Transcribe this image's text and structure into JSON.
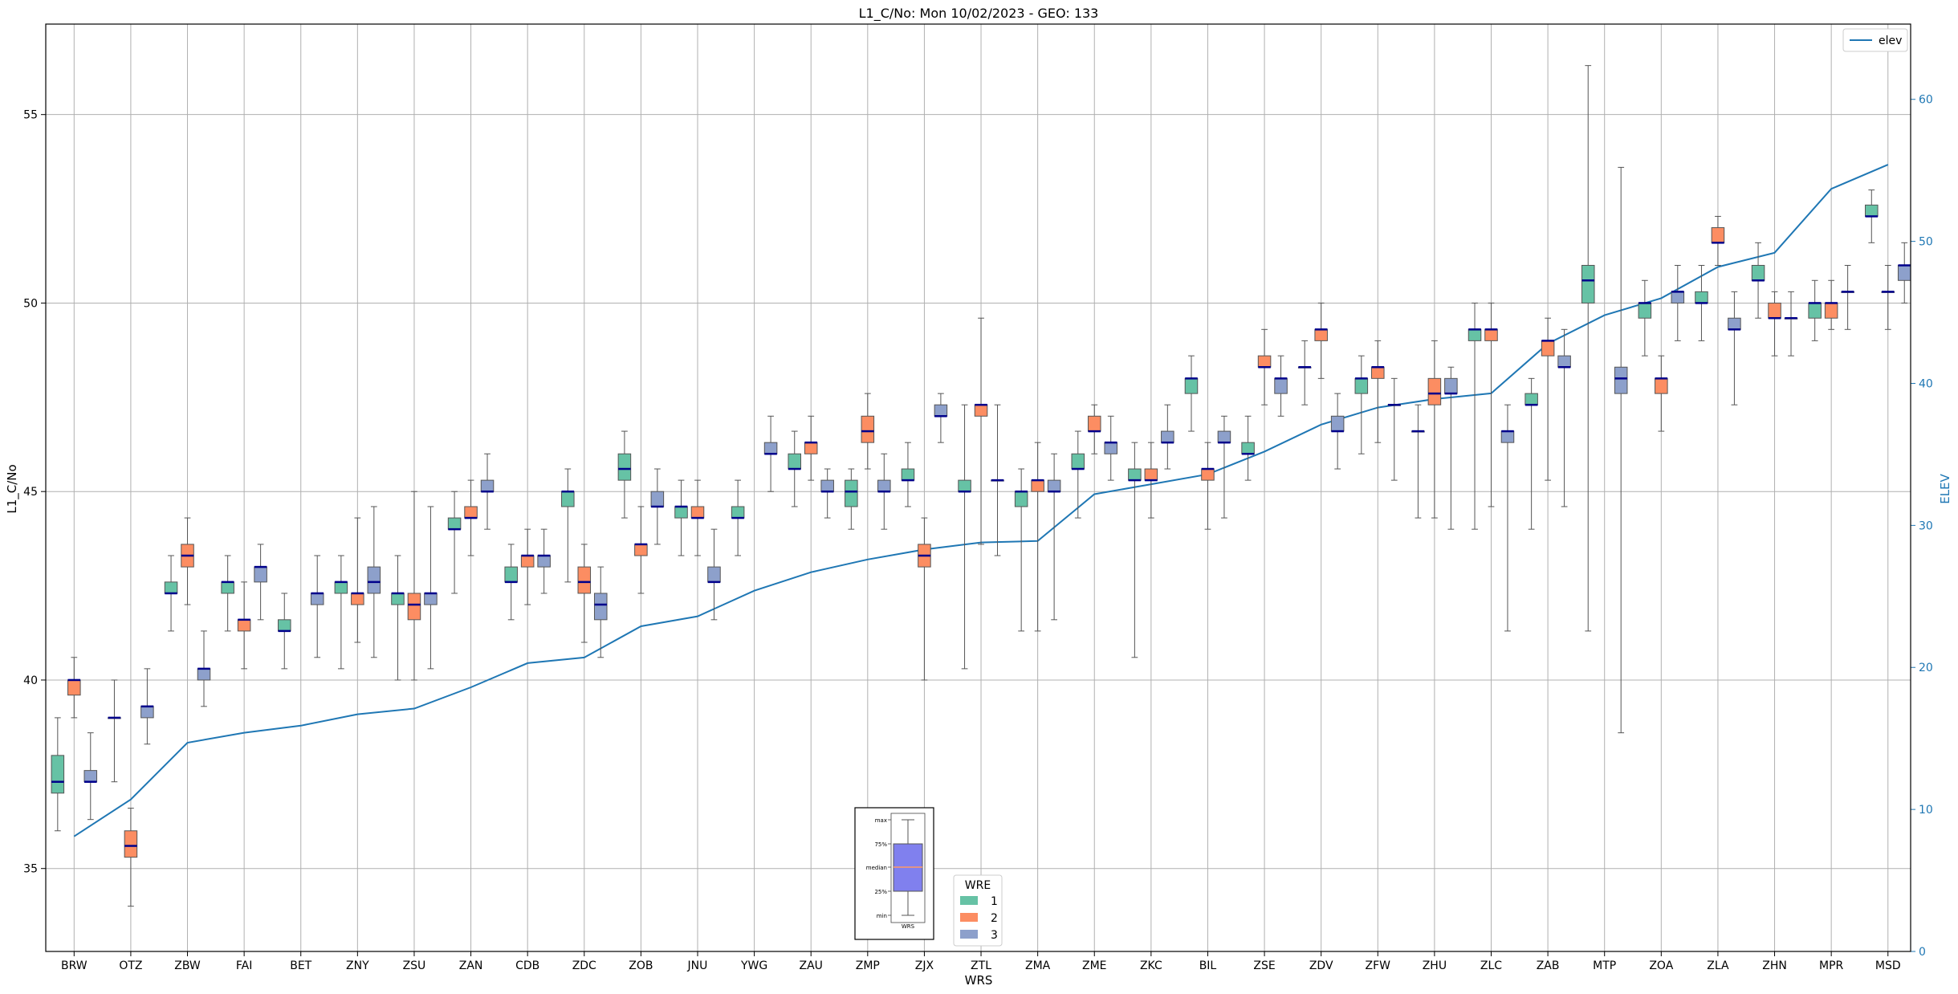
{
  "chart_data": {
    "type": "box",
    "title": "L1_C/No: Mon 10/02/2023 - GEO: 133",
    "xlabel": "WRS",
    "ylabel": "L1_C/No",
    "y2label": "ELEV",
    "ylim": [
      32.8,
      57.4
    ],
    "y2lim": [
      0,
      65.3
    ],
    "yticks": [
      35,
      40,
      45,
      50,
      55
    ],
    "y2ticks": [
      0,
      10,
      20,
      30,
      40,
      50,
      60
    ],
    "grid": true,
    "categories": [
      "BRW",
      "OTZ",
      "ZBW",
      "FAI",
      "BET",
      "ZNY",
      "ZSU",
      "ZAN",
      "CDB",
      "ZDC",
      "ZOB",
      "JNU",
      "YWG",
      "ZAU",
      "ZMP",
      "ZJX",
      "ZTL",
      "ZMA",
      "ZME",
      "ZKC",
      "BIL",
      "ZSE",
      "ZDV",
      "ZFW",
      "ZHU",
      "ZLC",
      "ZAB",
      "MTP",
      "ZOA",
      "ZLA",
      "ZHN",
      "MPR",
      "MSD"
    ],
    "wre_colors": {
      "1": "#66c2a5",
      "2": "#fc8d62",
      "3": "#8da0cb"
    },
    "median_color": "#00008b",
    "boxes": [
      {
        "wrs": "BRW",
        "wre": 1,
        "min": 36.0,
        "q1": 37.0,
        "median": 37.3,
        "q3": 38.0,
        "max": 39.0
      },
      {
        "wrs": "BRW",
        "wre": 2,
        "min": 39.0,
        "q1": 39.6,
        "median": 40.0,
        "q3": 40.0,
        "max": 40.6
      },
      {
        "wrs": "BRW",
        "wre": 3,
        "min": 36.3,
        "q1": 37.3,
        "median": 37.3,
        "q3": 37.6,
        "max": 38.6
      },
      {
        "wrs": "OTZ",
        "wre": 1,
        "min": 37.3,
        "q1": 39.0,
        "median": 39.0,
        "q3": 39.0,
        "max": 40.0
      },
      {
        "wrs": "OTZ",
        "wre": 2,
        "min": 34.0,
        "q1": 35.3,
        "median": 35.6,
        "q3": 36.0,
        "max": 36.6
      },
      {
        "wrs": "OTZ",
        "wre": 3,
        "min": 38.3,
        "q1": 39.0,
        "median": 39.3,
        "q3": 39.3,
        "max": 40.3
      },
      {
        "wrs": "ZBW",
        "wre": 1,
        "min": 41.3,
        "q1": 42.3,
        "median": 42.3,
        "q3": 42.6,
        "max": 43.3
      },
      {
        "wrs": "ZBW",
        "wre": 2,
        "min": 42.0,
        "q1": 43.0,
        "median": 43.3,
        "q3": 43.6,
        "max": 44.3
      },
      {
        "wrs": "ZBW",
        "wre": 3,
        "min": 39.3,
        "q1": 40.0,
        "median": 40.3,
        "q3": 40.3,
        "max": 41.3
      },
      {
        "wrs": "FAI",
        "wre": 1,
        "min": 41.3,
        "q1": 42.3,
        "median": 42.6,
        "q3": 42.6,
        "max": 43.3
      },
      {
        "wrs": "FAI",
        "wre": 2,
        "min": 40.3,
        "q1": 41.3,
        "median": 41.6,
        "q3": 41.6,
        "max": 42.6
      },
      {
        "wrs": "FAI",
        "wre": 3,
        "min": 41.6,
        "q1": 42.6,
        "median": 43.0,
        "q3": 43.0,
        "max": 43.6
      },
      {
        "wrs": "BET",
        "wre": 1,
        "min": 40.3,
        "q1": 41.3,
        "median": 41.3,
        "q3": 41.6,
        "max": 42.3
      },
      {
        "wrs": "BET",
        "wre": 3,
        "min": 40.6,
        "q1": 42.0,
        "median": 42.3,
        "q3": 42.3,
        "max": 43.3
      },
      {
        "wrs": "ZNY",
        "wre": 1,
        "min": 40.3,
        "q1": 42.3,
        "median": 42.6,
        "q3": 42.6,
        "max": 43.3
      },
      {
        "wrs": "ZNY",
        "wre": 2,
        "min": 41.0,
        "q1": 42.0,
        "median": 42.3,
        "q3": 42.3,
        "max": 44.3
      },
      {
        "wrs": "ZNY",
        "wre": 3,
        "min": 40.6,
        "q1": 42.3,
        "median": 42.6,
        "q3": 43.0,
        "max": 44.6
      },
      {
        "wrs": "ZSU",
        "wre": 1,
        "min": 40.0,
        "q1": 42.0,
        "median": 42.3,
        "q3": 42.3,
        "max": 43.3
      },
      {
        "wrs": "ZSU",
        "wre": 2,
        "min": 40.0,
        "q1": 41.6,
        "median": 42.0,
        "q3": 42.3,
        "max": 45.0
      },
      {
        "wrs": "ZSU",
        "wre": 3,
        "min": 40.3,
        "q1": 42.0,
        "median": 42.3,
        "q3": 42.3,
        "max": 44.6
      },
      {
        "wrs": "ZAN",
        "wre": 1,
        "min": 42.3,
        "q1": 44.0,
        "median": 44.0,
        "q3": 44.3,
        "max": 45.0
      },
      {
        "wrs": "ZAN",
        "wre": 2,
        "min": 43.3,
        "q1": 44.3,
        "median": 44.3,
        "q3": 44.6,
        "max": 45.3
      },
      {
        "wrs": "ZAN",
        "wre": 3,
        "min": 44.0,
        "q1": 45.0,
        "median": 45.0,
        "q3": 45.3,
        "max": 46.0
      },
      {
        "wrs": "CDB",
        "wre": 1,
        "min": 41.6,
        "q1": 42.6,
        "median": 42.6,
        "q3": 43.0,
        "max": 43.6
      },
      {
        "wrs": "CDB",
        "wre": 2,
        "min": 42.0,
        "q1": 43.0,
        "median": 43.3,
        "q3": 43.3,
        "max": 44.0
      },
      {
        "wrs": "CDB",
        "wre": 3,
        "min": 42.3,
        "q1": 43.0,
        "median": 43.3,
        "q3": 43.3,
        "max": 44.0
      },
      {
        "wrs": "ZDC",
        "wre": 1,
        "min": 42.6,
        "q1": 44.6,
        "median": 45.0,
        "q3": 45.0,
        "max": 45.6
      },
      {
        "wrs": "ZDC",
        "wre": 2,
        "min": 41.0,
        "q1": 42.3,
        "median": 42.6,
        "q3": 43.0,
        "max": 43.6
      },
      {
        "wrs": "ZDC",
        "wre": 3,
        "min": 40.6,
        "q1": 41.6,
        "median": 42.0,
        "q3": 42.3,
        "max": 43.0
      },
      {
        "wrs": "ZOB",
        "wre": 1,
        "min": 44.3,
        "q1": 45.3,
        "median": 45.6,
        "q3": 46.0,
        "max": 46.6
      },
      {
        "wrs": "ZOB",
        "wre": 2,
        "min": 42.3,
        "q1": 43.3,
        "median": 43.6,
        "q3": 43.6,
        "max": 44.6
      },
      {
        "wrs": "ZOB",
        "wre": 3,
        "min": 43.6,
        "q1": 44.6,
        "median": 44.6,
        "q3": 45.0,
        "max": 45.6
      },
      {
        "wrs": "JNU",
        "wre": 1,
        "min": 43.3,
        "q1": 44.3,
        "median": 44.6,
        "q3": 44.6,
        "max": 45.3
      },
      {
        "wrs": "JNU",
        "wre": 2,
        "min": 43.3,
        "q1": 44.3,
        "median": 44.3,
        "q3": 44.6,
        "max": 45.3
      },
      {
        "wrs": "JNU",
        "wre": 3,
        "min": 41.6,
        "q1": 42.6,
        "median": 42.6,
        "q3": 43.0,
        "max": 44.0
      },
      {
        "wrs": "YWG",
        "wre": 1,
        "min": 43.3,
        "q1": 44.3,
        "median": 44.3,
        "q3": 44.6,
        "max": 45.3
      },
      {
        "wrs": "YWG",
        "wre": 3,
        "min": 45.0,
        "q1": 46.0,
        "median": 46.0,
        "q3": 46.3,
        "max": 47.0
      },
      {
        "wrs": "ZAU",
        "wre": 1,
        "min": 44.6,
        "q1": 45.6,
        "median": 45.6,
        "q3": 46.0,
        "max": 46.6
      },
      {
        "wrs": "ZAU",
        "wre": 2,
        "min": 45.3,
        "q1": 46.0,
        "median": 46.3,
        "q3": 46.3,
        "max": 47.0
      },
      {
        "wrs": "ZAU",
        "wre": 3,
        "min": 44.3,
        "q1": 45.0,
        "median": 45.0,
        "q3": 45.3,
        "max": 45.6
      },
      {
        "wrs": "ZMP",
        "wre": 1,
        "min": 44.0,
        "q1": 44.6,
        "median": 45.0,
        "q3": 45.3,
        "max": 45.6
      },
      {
        "wrs": "ZMP",
        "wre": 2,
        "min": 45.6,
        "q1": 46.3,
        "median": 46.6,
        "q3": 47.0,
        "max": 47.6
      },
      {
        "wrs": "ZMP",
        "wre": 3,
        "min": 44.0,
        "q1": 45.0,
        "median": 45.0,
        "q3": 45.3,
        "max": 46.0
      },
      {
        "wrs": "ZJX",
        "wre": 1,
        "min": 44.6,
        "q1": 45.3,
        "median": 45.3,
        "q3": 45.6,
        "max": 46.3
      },
      {
        "wrs": "ZJX",
        "wre": 2,
        "min": 40.0,
        "q1": 43.0,
        "median": 43.3,
        "q3": 43.6,
        "max": 44.3
      },
      {
        "wrs": "ZJX",
        "wre": 3,
        "min": 46.3,
        "q1": 47.0,
        "median": 47.0,
        "q3": 47.3,
        "max": 47.6
      },
      {
        "wrs": "ZTL",
        "wre": 1,
        "min": 40.3,
        "q1": 45.0,
        "median": 45.0,
        "q3": 45.3,
        "max": 47.3
      },
      {
        "wrs": "ZTL",
        "wre": 2,
        "min": 43.6,
        "q1": 47.0,
        "median": 47.3,
        "q3": 47.3,
        "max": 49.6
      },
      {
        "wrs": "ZTL",
        "wre": 3,
        "min": 43.3,
        "q1": 45.3,
        "median": 45.3,
        "q3": 45.3,
        "max": 47.3
      },
      {
        "wrs": "ZMA",
        "wre": 1,
        "min": 41.3,
        "q1": 44.6,
        "median": 45.0,
        "q3": 45.0,
        "max": 45.6
      },
      {
        "wrs": "ZMA",
        "wre": 2,
        "min": 41.3,
        "q1": 45.0,
        "median": 45.3,
        "q3": 45.3,
        "max": 46.3
      },
      {
        "wrs": "ZMA",
        "wre": 3,
        "min": 41.6,
        "q1": 45.0,
        "median": 45.0,
        "q3": 45.3,
        "max": 46.0
      },
      {
        "wrs": "ZME",
        "wre": 1,
        "min": 44.3,
        "q1": 45.6,
        "median": 45.6,
        "q3": 46.0,
        "max": 46.6
      },
      {
        "wrs": "ZME",
        "wre": 2,
        "min": 46.0,
        "q1": 46.6,
        "median": 46.6,
        "q3": 47.0,
        "max": 47.3
      },
      {
        "wrs": "ZME",
        "wre": 3,
        "min": 45.3,
        "q1": 46.0,
        "median": 46.3,
        "q3": 46.3,
        "max": 47.0
      },
      {
        "wrs": "ZKC",
        "wre": 1,
        "min": 40.6,
        "q1": 45.3,
        "median": 45.3,
        "q3": 45.6,
        "max": 46.3
      },
      {
        "wrs": "ZKC",
        "wre": 2,
        "min": 44.3,
        "q1": 45.3,
        "median": 45.3,
        "q3": 45.6,
        "max": 46.3
      },
      {
        "wrs": "ZKC",
        "wre": 3,
        "min": 45.6,
        "q1": 46.3,
        "median": 46.3,
        "q3": 46.6,
        "max": 47.3
      },
      {
        "wrs": "BIL",
        "wre": 1,
        "min": 46.6,
        "q1": 47.6,
        "median": 48.0,
        "q3": 48.0,
        "max": 48.6
      },
      {
        "wrs": "BIL",
        "wre": 2,
        "min": 44.0,
        "q1": 45.3,
        "median": 45.6,
        "q3": 45.6,
        "max": 46.3
      },
      {
        "wrs": "BIL",
        "wre": 3,
        "min": 44.3,
        "q1": 46.3,
        "median": 46.3,
        "q3": 46.6,
        "max": 47.0
      },
      {
        "wrs": "ZSE",
        "wre": 1,
        "min": 45.3,
        "q1": 46.0,
        "median": 46.0,
        "q3": 46.3,
        "max": 47.0
      },
      {
        "wrs": "ZSE",
        "wre": 2,
        "min": 47.3,
        "q1": 48.3,
        "median": 48.3,
        "q3": 48.6,
        "max": 49.3
      },
      {
        "wrs": "ZSE",
        "wre": 3,
        "min": 47.0,
        "q1": 47.6,
        "median": 48.0,
        "q3": 48.0,
        "max": 48.6
      },
      {
        "wrs": "ZDV",
        "wre": 1,
        "min": 47.3,
        "q1": 48.3,
        "median": 48.3,
        "q3": 48.3,
        "max": 49.0
      },
      {
        "wrs": "ZDV",
        "wre": 2,
        "min": 48.0,
        "q1": 49.0,
        "median": 49.3,
        "q3": 49.3,
        "max": 50.0
      },
      {
        "wrs": "ZDV",
        "wre": 3,
        "min": 45.6,
        "q1": 46.6,
        "median": 46.6,
        "q3": 47.0,
        "max": 47.6
      },
      {
        "wrs": "ZFW",
        "wre": 1,
        "min": 46.0,
        "q1": 47.6,
        "median": 48.0,
        "q3": 48.0,
        "max": 48.6
      },
      {
        "wrs": "ZFW",
        "wre": 2,
        "min": 46.3,
        "q1": 48.0,
        "median": 48.3,
        "q3": 48.3,
        "max": 49.0
      },
      {
        "wrs": "ZFW",
        "wre": 3,
        "min": 45.3,
        "q1": 47.3,
        "median": 47.3,
        "q3": 47.3,
        "max": 48.0
      },
      {
        "wrs": "ZHU",
        "wre": 1,
        "min": 44.3,
        "q1": 46.6,
        "median": 46.6,
        "q3": 46.6,
        "max": 47.3
      },
      {
        "wrs": "ZHU",
        "wre": 2,
        "min": 44.3,
        "q1": 47.3,
        "median": 47.6,
        "q3": 48.0,
        "max": 49.0
      },
      {
        "wrs": "ZHU",
        "wre": 3,
        "min": 44.0,
        "q1": 47.6,
        "median": 47.6,
        "q3": 48.0,
        "max": 48.3
      },
      {
        "wrs": "ZLC",
        "wre": 1,
        "min": 44.0,
        "q1": 49.0,
        "median": 49.3,
        "q3": 49.3,
        "max": 50.0
      },
      {
        "wrs": "ZLC",
        "wre": 2,
        "min": 44.6,
        "q1": 49.0,
        "median": 49.3,
        "q3": 49.3,
        "max": 50.0
      },
      {
        "wrs": "ZLC",
        "wre": 3,
        "min": 41.3,
        "q1": 46.3,
        "median": 46.6,
        "q3": 46.6,
        "max": 47.3
      },
      {
        "wrs": "ZAB",
        "wre": 1,
        "min": 44.0,
        "q1": 47.3,
        "median": 47.3,
        "q3": 47.6,
        "max": 48.0
      },
      {
        "wrs": "ZAB",
        "wre": 2,
        "min": 45.3,
        "q1": 48.6,
        "median": 49.0,
        "q3": 49.0,
        "max": 49.6
      },
      {
        "wrs": "ZAB",
        "wre": 3,
        "min": 44.6,
        "q1": 48.3,
        "median": 48.3,
        "q3": 48.6,
        "max": 49.3
      },
      {
        "wrs": "MTP",
        "wre": 1,
        "min": 41.3,
        "q1": 50.0,
        "median": 50.6,
        "q3": 51.0,
        "max": 56.3
      },
      {
        "wrs": "MTP",
        "wre": 3,
        "min": 38.6,
        "q1": 47.6,
        "median": 48.0,
        "q3": 48.3,
        "max": 53.6
      },
      {
        "wrs": "ZOA",
        "wre": 1,
        "min": 48.6,
        "q1": 49.6,
        "median": 50.0,
        "q3": 50.0,
        "max": 50.6
      },
      {
        "wrs": "ZOA",
        "wre": 2,
        "min": 46.6,
        "q1": 47.6,
        "median": 48.0,
        "q3": 48.0,
        "max": 48.6
      },
      {
        "wrs": "ZOA",
        "wre": 3,
        "min": 49.0,
        "q1": 50.0,
        "median": 50.3,
        "q3": 50.3,
        "max": 51.0
      },
      {
        "wrs": "ZLA",
        "wre": 1,
        "min": 49.0,
        "q1": 50.0,
        "median": 50.0,
        "q3": 50.3,
        "max": 51.0
      },
      {
        "wrs": "ZLA",
        "wre": 2,
        "min": 51.0,
        "q1": 51.6,
        "median": 51.6,
        "q3": 52.0,
        "max": 52.3
      },
      {
        "wrs": "ZLA",
        "wre": 3,
        "min": 47.3,
        "q1": 49.3,
        "median": 49.3,
        "q3": 49.6,
        "max": 50.3
      },
      {
        "wrs": "ZHN",
        "wre": 1,
        "min": 49.6,
        "q1": 50.6,
        "median": 50.6,
        "q3": 51.0,
        "max": 51.6
      },
      {
        "wrs": "ZHN",
        "wre": 2,
        "min": 48.6,
        "q1": 49.6,
        "median": 49.6,
        "q3": 50.0,
        "max": 50.3
      },
      {
        "wrs": "ZHN",
        "wre": 3,
        "min": 48.6,
        "q1": 49.6,
        "median": 49.6,
        "q3": 49.6,
        "max": 50.3
      },
      {
        "wrs": "MPR",
        "wre": 1,
        "min": 49.0,
        "q1": 49.6,
        "median": 50.0,
        "q3": 50.0,
        "max": 50.6
      },
      {
        "wrs": "MPR",
        "wre": 2,
        "min": 49.3,
        "q1": 49.6,
        "median": 50.0,
        "q3": 50.0,
        "max": 50.6
      },
      {
        "wrs": "MPR",
        "wre": 3,
        "min": 49.3,
        "q1": 50.3,
        "median": 50.3,
        "q3": 50.3,
        "max": 51.0
      },
      {
        "wrs": "MSD",
        "wre": 1,
        "min": 51.6,
        "q1": 52.3,
        "median": 52.3,
        "q3": 52.6,
        "max": 53.0
      },
      {
        "wrs": "MSD",
        "wre": 2,
        "min": 49.3,
        "q1": 50.3,
        "median": 50.3,
        "q3": 50.3,
        "max": 51.0
      },
      {
        "wrs": "MSD",
        "wre": 3,
        "min": 50.0,
        "q1": 50.6,
        "median": 51.0,
        "q3": 51.0,
        "max": 51.6
      }
    ],
    "elev_series": {
      "name": "elev",
      "color": "#1f77b4",
      "values": [
        8.1,
        10.7,
        14.7,
        15.4,
        15.9,
        16.7,
        17.1,
        18.6,
        20.3,
        20.7,
        22.9,
        23.6,
        25.4,
        26.7,
        27.6,
        28.3,
        28.8,
        28.9,
        32.2,
        32.9,
        33.6,
        35.2,
        37.1,
        38.3,
        38.9,
        39.3,
        42.8,
        44.8,
        46.0,
        48.2,
        49.2,
        53.7,
        55.4
      ]
    },
    "legend": {
      "elev_label": "elev",
      "elev_position": "top-right",
      "wre_title": "WRE",
      "wre_entries": [
        {
          "label": "1",
          "color": "#66c2a5"
        },
        {
          "label": "2",
          "color": "#fc8d62"
        },
        {
          "label": "3",
          "color": "#8da0cb"
        }
      ],
      "wre_position": "bottom-center"
    },
    "key": {
      "labels": [
        "max",
        "75%",
        "median",
        "25%",
        "min"
      ],
      "xlabel": "WRS",
      "fill": "#8080ee",
      "median_line": "#ff9966"
    }
  }
}
